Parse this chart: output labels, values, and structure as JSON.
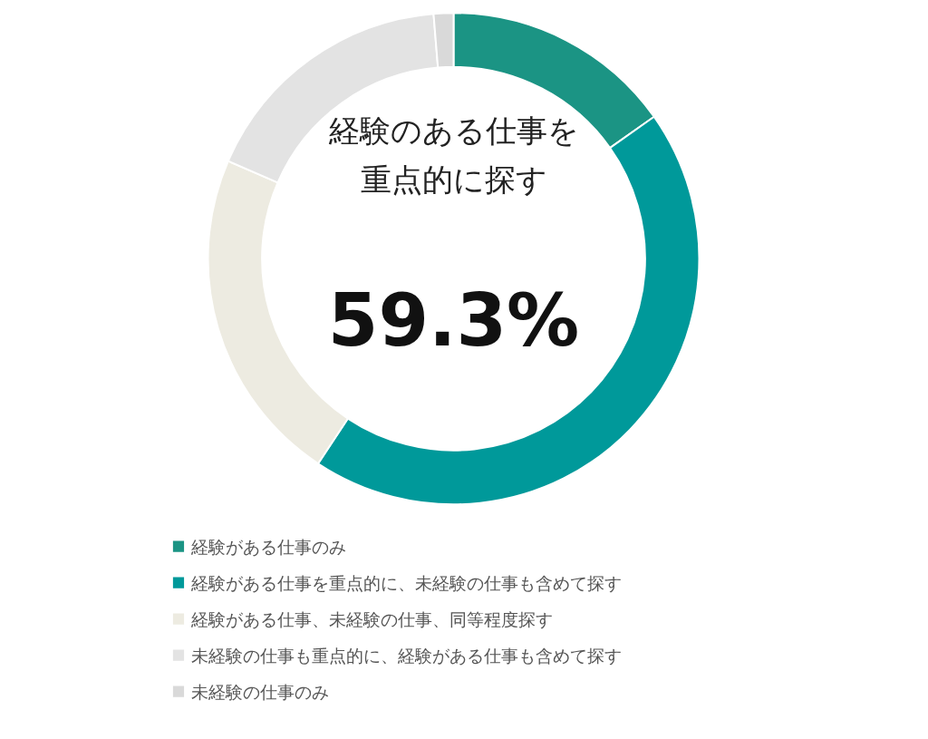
{
  "chart_data": {
    "type": "donut",
    "title": "経験のある仕事を重点的に探す",
    "annotations": [
      "59.3%"
    ],
    "categories": [
      "経験がある仕事のみ",
      "経験がある仕事を重点的に、未経験の仕事も含めて探す",
      "経験がある仕事、未経験の仕事、同等程度探す",
      "未経験の仕事も重点的に、経験がある仕事も含めて探す",
      "未経験の仕事のみ"
    ],
    "values": [
      15.2,
      44.1,
      22.2,
      17.2,
      1.3
    ],
    "colors": [
      "#1b9484",
      "#00999a",
      "#edebe1",
      "#e3e3e3",
      "#d9d9d9"
    ],
    "legend": "bottom"
  }
}
